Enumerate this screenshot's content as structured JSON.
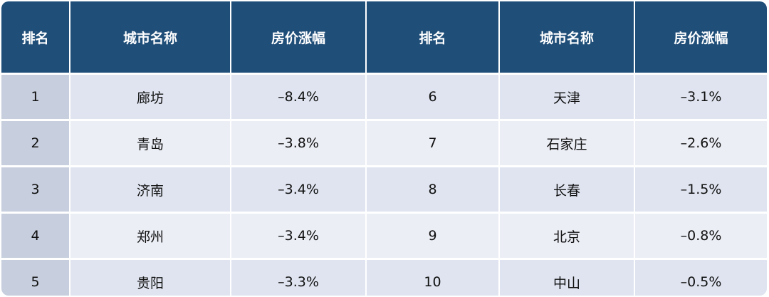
{
  "table": {
    "headers": [
      "排名",
      "城市名称",
      "房价涨幅",
      "排名",
      "城市名称",
      "房价涨幅"
    ],
    "rows": [
      [
        "1",
        "廊坊",
        "–8.4%",
        "6",
        "天津",
        "–3.1%"
      ],
      [
        "2",
        "青岛",
        "–3.8%",
        "7",
        "石家庄",
        "–2.6%"
      ],
      [
        "3",
        "济南",
        "–3.4%",
        "8",
        "长春",
        "–1.5%"
      ],
      [
        "4",
        "郑州",
        "–3.4%",
        "9",
        "北京",
        "–0.8%"
      ],
      [
        "5",
        "贵阳",
        "–3.3%",
        "10",
        "中山",
        "–0.5%"
      ]
    ]
  }
}
